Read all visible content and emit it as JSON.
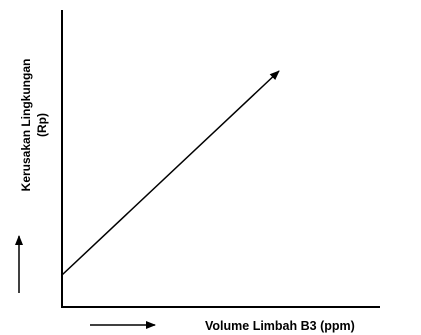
{
  "figure": {
    "y_axis_label_line1": "Kerusakan Lingkungan",
    "y_axis_label_line2": "(Rp)",
    "x_axis_label": "Volume Limbah B3 (ppm)",
    "line_color": "#000000",
    "background": "#ffffff"
  }
}
